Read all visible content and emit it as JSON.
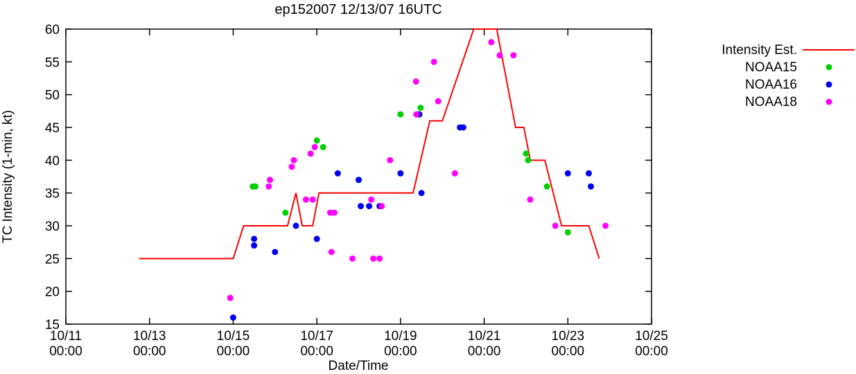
{
  "chart_data": {
    "type": "line",
    "title": "ep152007 12/13/07 16UTC",
    "xlabel": "Date/Time",
    "ylabel": "TC Intensity (1-min, kt)",
    "grid": false,
    "legend_position": "right-outside",
    "x_axis": {
      "min_days": 0,
      "max_days": 14,
      "ticks": [
        {
          "day": 0,
          "line1": "10/11",
          "line2": "00:00"
        },
        {
          "day": 2,
          "line1": "10/13",
          "line2": "00:00"
        },
        {
          "day": 4,
          "line1": "10/15",
          "line2": "00:00"
        },
        {
          "day": 6,
          "line1": "10/17",
          "line2": "00:00"
        },
        {
          "day": 8,
          "line1": "10/19",
          "line2": "00:00"
        },
        {
          "day": 10,
          "line1": "10/21",
          "line2": "00:00"
        },
        {
          "day": 12,
          "line1": "10/23",
          "line2": "00:00"
        },
        {
          "day": 14,
          "line1": "10/25",
          "line2": "00:00"
        }
      ]
    },
    "y_axis": {
      "min": 15,
      "max": 60,
      "ticks": [
        15,
        20,
        25,
        30,
        35,
        40,
        45,
        50,
        55,
        60
      ]
    },
    "series": [
      {
        "name": "Intensity Est.",
        "type": "line",
        "color": "#ff0000",
        "points": [
          [
            1.75,
            25
          ],
          [
            4.0,
            25
          ],
          [
            4.25,
            30
          ],
          [
            5.3,
            30
          ],
          [
            5.5,
            35
          ],
          [
            5.65,
            30
          ],
          [
            5.9,
            30
          ],
          [
            6.05,
            35
          ],
          [
            8.3,
            35
          ],
          [
            8.7,
            46
          ],
          [
            9.0,
            46
          ],
          [
            9.75,
            60
          ],
          [
            10.3,
            60
          ],
          [
            10.75,
            45
          ],
          [
            10.95,
            45
          ],
          [
            11.1,
            40
          ],
          [
            11.45,
            40
          ],
          [
            11.85,
            30
          ],
          [
            12.5,
            30
          ],
          [
            12.75,
            25
          ]
        ]
      },
      {
        "name": "NOAA15",
        "type": "scatter",
        "color": "#00d000",
        "points": [
          [
            4.47,
            36
          ],
          [
            4.53,
            36
          ],
          [
            5.25,
            32
          ],
          [
            6.0,
            43
          ],
          [
            6.15,
            42
          ],
          [
            7.0,
            37
          ],
          [
            8.0,
            47
          ],
          [
            8.42,
            47
          ],
          [
            8.48,
            48
          ],
          [
            11.0,
            41
          ],
          [
            11.05,
            40
          ],
          [
            11.5,
            36
          ],
          [
            12.0,
            29
          ]
        ]
      },
      {
        "name": "NOAA16",
        "type": "scatter",
        "color": "#0000ee",
        "points": [
          [
            4.0,
            16
          ],
          [
            4.5,
            27
          ],
          [
            4.5,
            28
          ],
          [
            5.0,
            26
          ],
          [
            5.5,
            30
          ],
          [
            6.0,
            28
          ],
          [
            6.5,
            38
          ],
          [
            7.0,
            37
          ],
          [
            7.05,
            33
          ],
          [
            7.25,
            33
          ],
          [
            7.5,
            33
          ],
          [
            8.0,
            38
          ],
          [
            8.45,
            47
          ],
          [
            8.5,
            35
          ],
          [
            9.42,
            45
          ],
          [
            9.5,
            45
          ],
          [
            12.0,
            38
          ],
          [
            12.5,
            38
          ],
          [
            12.55,
            36
          ]
        ]
      },
      {
        "name": "NOAA18",
        "type": "scatter",
        "color": "#ff00ff",
        "points": [
          [
            3.93,
            19
          ],
          [
            4.85,
            36
          ],
          [
            4.88,
            37
          ],
          [
            5.4,
            39
          ],
          [
            5.45,
            40
          ],
          [
            5.74,
            34
          ],
          [
            5.85,
            41
          ],
          [
            5.95,
            42
          ],
          [
            5.9,
            34
          ],
          [
            6.32,
            32
          ],
          [
            6.42,
            32
          ],
          [
            6.35,
            26
          ],
          [
            6.85,
            25
          ],
          [
            7.3,
            34
          ],
          [
            7.35,
            25
          ],
          [
            7.5,
            25
          ],
          [
            7.55,
            33
          ],
          [
            7.75,
            40
          ],
          [
            8.37,
            52
          ],
          [
            8.38,
            47
          ],
          [
            8.8,
            55
          ],
          [
            8.9,
            49
          ],
          [
            9.3,
            38
          ],
          [
            10.17,
            58
          ],
          [
            10.37,
            56
          ],
          [
            10.7,
            56
          ],
          [
            11.1,
            34
          ],
          [
            11.7,
            30
          ],
          [
            12.9,
            30
          ]
        ]
      }
    ]
  }
}
